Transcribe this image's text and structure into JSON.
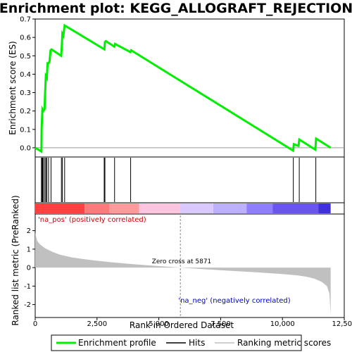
{
  "chart_data": {
    "type": "line",
    "title": "Enrichment plot: KEGG_ALLOGRAFT_REJECTION",
    "top_panel": {
      "ylabel": "Enrichment score (ES)",
      "ylim": [
        -0.05,
        0.7
      ],
      "yticks": [
        "0.0",
        "0.1",
        "0.2",
        "0.3",
        "0.4",
        "0.5",
        "0.6",
        "0.7"
      ],
      "series": [
        {
          "name": "Enrichment profile",
          "color": "#00ee00",
          "x": [
            0,
            250,
            260,
            290,
            330,
            380,
            400,
            430,
            470,
            500,
            540,
            580,
            620,
            660,
            1050,
            1080,
            1100,
            1140,
            1190,
            2800,
            2820,
            2860,
            3200,
            3230,
            3850,
            3880,
            10430,
            10460,
            10650,
            10680,
            11330,
            11360,
            11950
          ],
          "y": [
            0.0,
            -0.02,
            0.1,
            0.21,
            0.2,
            0.21,
            0.29,
            0.39,
            0.38,
            0.46,
            0.46,
            0.47,
            0.53,
            0.535,
            0.5,
            0.56,
            0.62,
            0.61,
            0.665,
            0.535,
            0.575,
            0.58,
            0.55,
            0.565,
            0.52,
            0.53,
            -0.015,
            0.02,
            0.01,
            0.045,
            -0.01,
            0.05,
            0.0
          ]
        }
      ]
    },
    "hits": [
      250,
      280,
      300,
      330,
      390,
      430,
      470,
      540,
      640,
      1060,
      1100,
      1190,
      2790,
      2820,
      3210,
      3860,
      10440,
      10680,
      11350
    ],
    "rank_panel": {
      "ylabel": "Ranked list metric (PreRanked)",
      "xlabel": "Rank in Ordered Dataset",
      "xlim": [
        0,
        12500
      ],
      "ylim": [
        -2.7,
        2.9
      ],
      "xticks": [
        "0",
        "2,500",
        "5,000",
        "7,500",
        "10,000",
        "12,500"
      ],
      "yticks": [
        "2",
        "1",
        "0",
        "-1",
        "-2"
      ],
      "metric_curve": {
        "x": [
          0,
          80,
          200,
          400,
          700,
          1000,
          1500,
          2000,
          3000,
          4000,
          5000,
          5871,
          7000,
          8000,
          9000,
          10000,
          10600,
          11000,
          11300,
          11600,
          11800,
          11900,
          11950
        ],
        "y": [
          1.9,
          1.45,
          1.25,
          1.05,
          0.85,
          0.7,
          0.55,
          0.45,
          0.3,
          0.18,
          0.08,
          0.0,
          -0.1,
          -0.18,
          -0.26,
          -0.35,
          -0.42,
          -0.5,
          -0.6,
          -0.78,
          -1.0,
          -1.4,
          -2.55
        ]
      },
      "zero_cross_label": "Zero cross at 5871",
      "pos_label": "'na_pos' (positively correlated)",
      "neg_label": "'na_neg' (negatively correlated)"
    },
    "color_bar_segments": [
      {
        "from": 0,
        "to": 2000,
        "color": "#ff4040"
      },
      {
        "from": 2000,
        "to": 3000,
        "color": "#ff7b7b"
      },
      {
        "from": 3000,
        "to": 4200,
        "color": "#ff9a9a"
      },
      {
        "from": 4200,
        "to": 5850,
        "color": "#ffc4e0"
      },
      {
        "from": 5850,
        "to": 7200,
        "color": "#d8c8ff"
      },
      {
        "from": 7200,
        "to": 8550,
        "color": "#bdb0ff"
      },
      {
        "from": 8550,
        "to": 9600,
        "color": "#8f7eff"
      },
      {
        "from": 9600,
        "to": 11450,
        "color": "#6a55ef"
      },
      {
        "from": 11450,
        "to": 11950,
        "color": "#4030dd"
      }
    ],
    "legend": [
      "Enrichment profile",
      "Hits",
      "Ranking metric scores"
    ]
  }
}
